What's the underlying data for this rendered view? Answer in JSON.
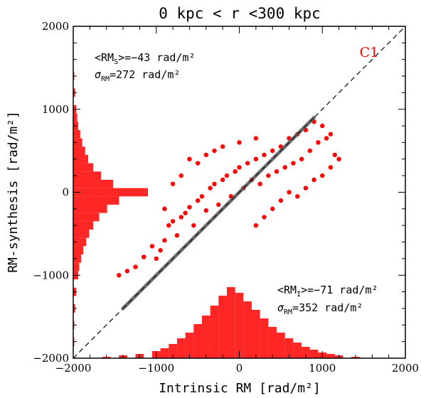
{
  "chart_data": {
    "type": "scatter",
    "title": "0 kpc < r <300 kpc",
    "xlabel": "Intrinsic RM [rad/m²]",
    "ylabel": "RM-synthesis [rad/m²]",
    "xlim": [
      -2000,
      2000
    ],
    "ylim": [
      -2000,
      2000
    ],
    "x_ticks": [
      -2000,
      -1000,
      0,
      1000,
      2000
    ],
    "y_ticks": [
      -2000,
      -1000,
      0,
      1000,
      2000
    ],
    "tick_labels_x": [
      "−2000",
      "−1000",
      "0",
      "1000",
      "2000"
    ],
    "tick_labels_y": [
      "−2000",
      "−1000",
      "0",
      "1000",
      "2000"
    ],
    "grid": false,
    "panel_label": "C1",
    "annotations": {
      "top_left": {
        "mean_symbol": "<RM",
        "mean_sub": "S",
        "mean_rest": ">=−43 rad/m²",
        "sigma_symbol": "σ",
        "sigma_sub": "RM",
        "sigma_rest": "=272 rad/m²"
      },
      "bottom_right": {
        "mean_symbol": "<RM",
        "mean_sub": "I",
        "mean_rest": ">=−71 rad/m²",
        "sigma_symbol": "σ",
        "sigma_sub": "RM",
        "sigma_rest": "=352 rad/m²"
      }
    },
    "reference_line": {
      "slope": 1,
      "intercept": 0,
      "style": "dashed"
    },
    "diagonal_band": {
      "x_range": [
        -1400,
        900
      ],
      "color": "gray"
    },
    "stats": {
      "rm_synthesis_mean": -43,
      "rm_synthesis_sigma": 272,
      "intrinsic_mean": -71,
      "intrinsic_sigma": 352
    },
    "series": [
      {
        "kind": "scatter",
        "description_points": [
          [
            -1450,
            -1000
          ],
          [
            -1350,
            -950
          ],
          [
            -1250,
            -900
          ],
          [
            -1150,
            -780
          ],
          [
            -1050,
            -650
          ],
          [
            -1000,
            -800
          ],
          [
            -950,
            -700
          ],
          [
            -900,
            -580
          ],
          [
            -850,
            -400
          ],
          [
            -800,
            -350
          ],
          [
            -750,
            -520
          ],
          [
            -700,
            -300
          ],
          [
            -650,
            -250
          ],
          [
            -600,
            -180
          ],
          [
            -550,
            -400
          ],
          [
            -500,
            -100
          ],
          [
            -450,
            -50
          ],
          [
            -400,
            -220
          ],
          [
            -350,
            50
          ],
          [
            -300,
            100
          ],
          [
            -250,
            -150
          ],
          [
            -200,
            150
          ],
          [
            -150,
            200
          ],
          [
            -100,
            -50
          ],
          [
            -50,
            250
          ],
          [
            0,
            300
          ],
          [
            50,
            50
          ],
          [
            100,
            350
          ],
          [
            150,
            150
          ],
          [
            200,
            400
          ],
          [
            250,
            100
          ],
          [
            300,
            450
          ],
          [
            350,
            200
          ],
          [
            400,
            500
          ],
          [
            450,
            250
          ],
          [
            500,
            550
          ],
          [
            550,
            300
          ],
          [
            600,
            650
          ],
          [
            650,
            350
          ],
          [
            700,
            700
          ],
          [
            750,
            400
          ],
          [
            800,
            750
          ],
          [
            850,
            500
          ],
          [
            900,
            850
          ],
          [
            950,
            600
          ],
          [
            1000,
            800
          ],
          [
            1050,
            650
          ],
          [
            1100,
            700
          ],
          [
            1150,
            450
          ],
          [
            1200,
            400
          ],
          [
            1100,
            300
          ],
          [
            1000,
            200
          ],
          [
            900,
            150
          ],
          [
            800,
            50
          ],
          [
            700,
            -50
          ],
          [
            600,
            0
          ],
          [
            500,
            -100
          ],
          [
            400,
            -200
          ],
          [
            300,
            -300
          ],
          [
            200,
            -400
          ],
          [
            -700,
            200
          ],
          [
            -600,
            400
          ],
          [
            -500,
            350
          ],
          [
            -400,
            450
          ],
          [
            -300,
            500
          ],
          [
            -200,
            550
          ],
          [
            0,
            600
          ],
          [
            200,
            650
          ],
          [
            -800,
            100
          ],
          [
            -900,
            -200
          ]
        ],
        "color": "#ff0000"
      },
      {
        "kind": "histogram-y",
        "bins_center": [
          -1800,
          -1600,
          -1400,
          -1200,
          -1000,
          -900,
          -800,
          -700,
          -600,
          -500,
          -400,
          -300,
          -200,
          -100,
          0,
          100,
          200,
          300,
          400,
          500,
          600,
          700,
          800,
          900,
          1000,
          1200,
          1400
        ],
        "counts": [
          1,
          1,
          2,
          3,
          5,
          6,
          8,
          10,
          13,
          16,
          20,
          26,
          34,
          46,
          75,
          40,
          28,
          20,
          15,
          12,
          9,
          7,
          5,
          4,
          3,
          2,
          1
        ],
        "color": "#ff0000"
      },
      {
        "kind": "histogram-x",
        "bins_center": [
          -1600,
          -1400,
          -1200,
          -1000,
          -900,
          -800,
          -700,
          -600,
          -500,
          -400,
          -300,
          -200,
          -100,
          0,
          100,
          200,
          300,
          400,
          500,
          600,
          700,
          800,
          900,
          1000,
          1100,
          1200,
          1400
        ],
        "counts": [
          1,
          2,
          3,
          5,
          7,
          10,
          14,
          18,
          24,
          30,
          37,
          44,
          50,
          46,
          40,
          34,
          28,
          22,
          18,
          14,
          11,
          8,
          6,
          4,
          3,
          2,
          1
        ],
        "color": "#ff0000"
      }
    ]
  }
}
